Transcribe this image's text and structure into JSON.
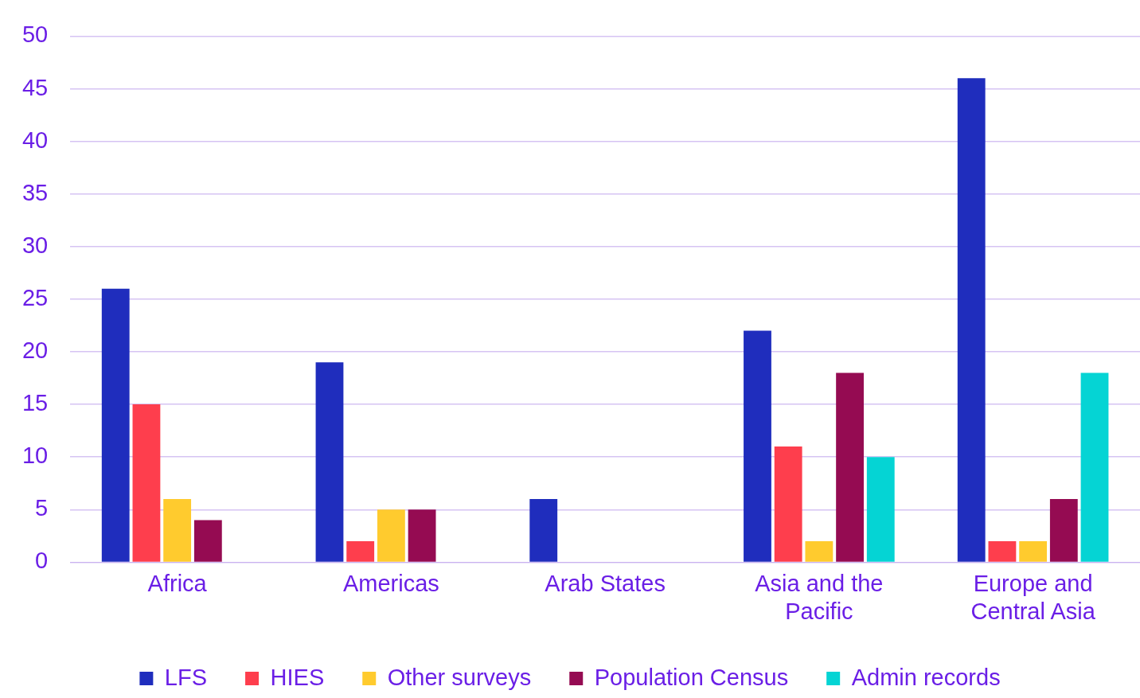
{
  "chart_data": {
    "type": "bar",
    "categories": [
      "Africa",
      "Americas",
      "Arab States",
      "Asia and the Pacific",
      "Europe and Central Asia"
    ],
    "series": [
      {
        "name": "LFS",
        "color": "#1f2dbd",
        "values": [
          26,
          19,
          6,
          22,
          46
        ]
      },
      {
        "name": "HIES",
        "color": "#fe3e4d",
        "values": [
          15,
          2,
          0,
          11,
          2
        ]
      },
      {
        "name": "Other surveys",
        "color": "#ffcb2e",
        "values": [
          6,
          5,
          0,
          2,
          2
        ]
      },
      {
        "name": "Population Census",
        "color": "#950b52",
        "values": [
          4,
          5,
          0,
          18,
          6
        ]
      },
      {
        "name": "Admin records",
        "color": "#05d4d4",
        "values": [
          0,
          0,
          0,
          10,
          18
        ]
      }
    ],
    "ylim": [
      0,
      50
    ],
    "yticks": [
      0,
      5,
      10,
      15,
      20,
      25,
      30,
      35,
      40,
      45,
      50
    ],
    "grid": "y",
    "legend": "bottom"
  }
}
